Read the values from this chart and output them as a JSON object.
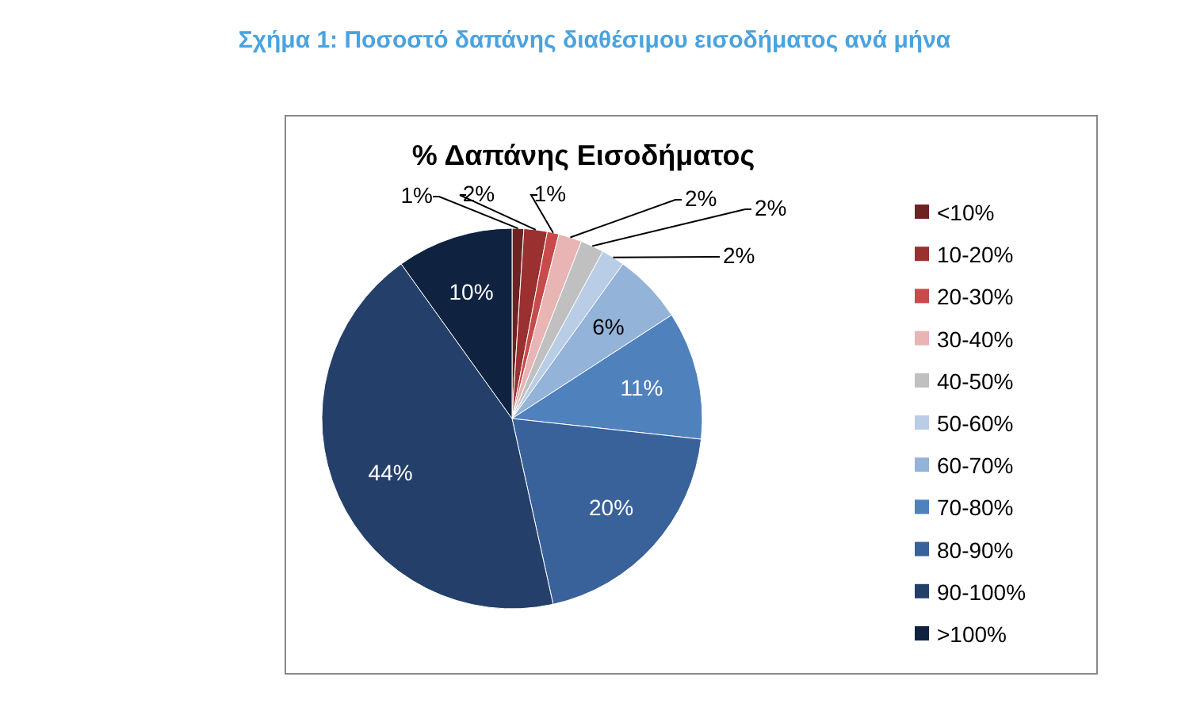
{
  "chart_data": {
    "type": "pie",
    "title": "Σχήμα 1: Ποσοστό δαπάνης διαθέσιμου εισοδήματος ανά μήνα",
    "subtitle": "% Δαπάνης Εισοδήματος",
    "categories": [
      "<10%",
      "10-20%",
      "20-30%",
      "30-40%",
      "40-50%",
      "50-60%",
      "60-70%",
      "70-80%",
      "80-90%",
      "90-100%",
      ">100%"
    ],
    "values": [
      1,
      2,
      1,
      2,
      2,
      2,
      6,
      11,
      20,
      44,
      10
    ],
    "colors": [
      "#6e2323",
      "#9a3030",
      "#c84a4a",
      "#e8b4b4",
      "#c0c0c0",
      "#b9cde6",
      "#94b3d8",
      "#4f81bd",
      "#3a629a",
      "#24406a",
      "#0f2240"
    ],
    "value_labels": [
      "1%",
      "2%",
      "1%",
      "2%",
      "2%",
      "2%",
      "6%",
      "11%",
      "20%",
      "44%",
      "10%"
    ],
    "legend": "right"
  }
}
